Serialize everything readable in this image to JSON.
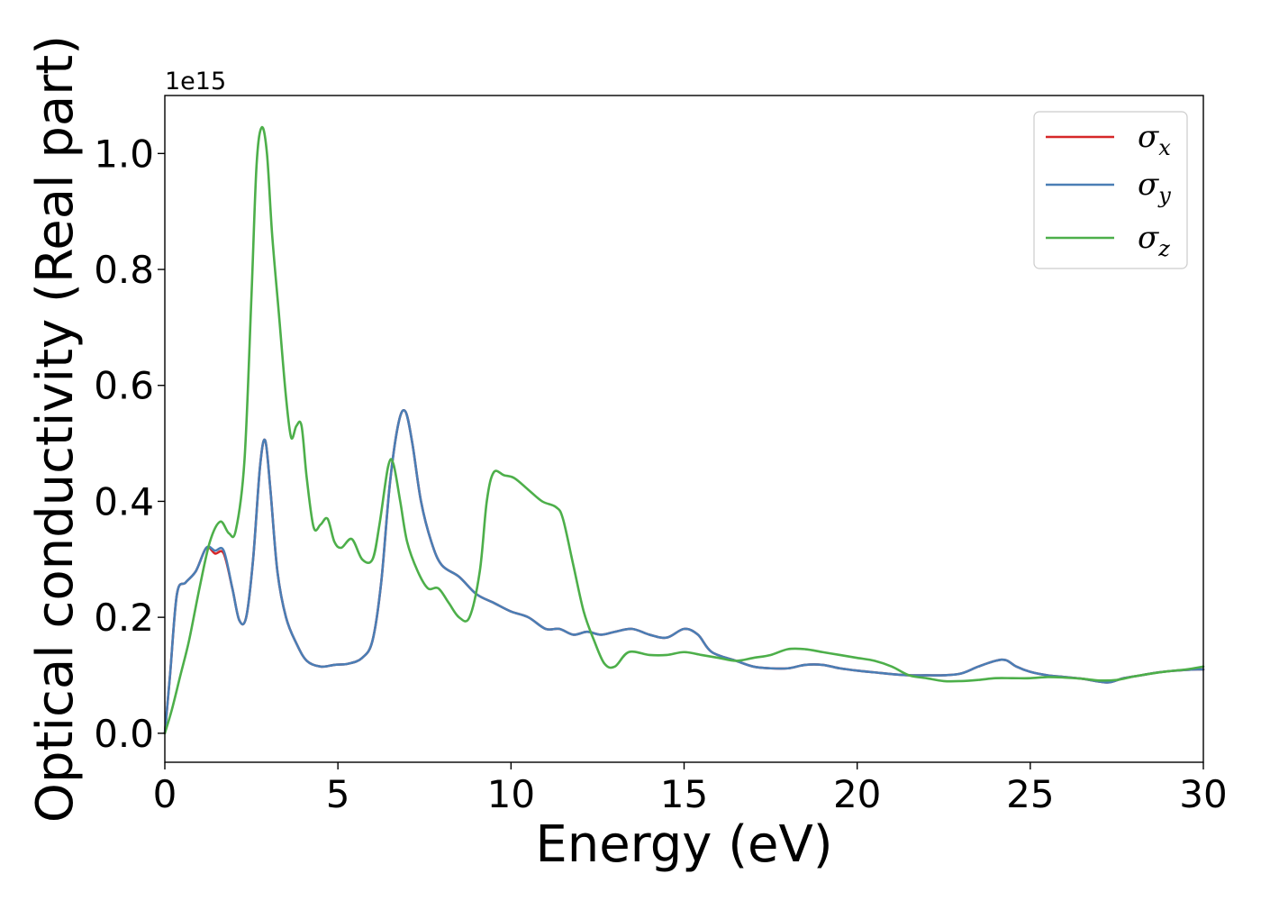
{
  "chart_data": {
    "type": "line",
    "xlabel": "Energy (eV)",
    "ylabel": "Optical conductivity (Real part)",
    "y_offset_text": "1e15",
    "xlim": [
      0,
      30
    ],
    "ylim": [
      -0.05,
      1.1
    ],
    "x_ticks": [
      0,
      5,
      10,
      15,
      20,
      25,
      30
    ],
    "x_tick_labels": [
      "0",
      "5",
      "10",
      "15",
      "20",
      "25",
      "30"
    ],
    "y_ticks": [
      0.0,
      0.2,
      0.4,
      0.6,
      0.8,
      1.0
    ],
    "y_tick_labels": [
      "0.0",
      "0.2",
      "0.4",
      "0.6",
      "0.8",
      "1.0"
    ],
    "grid": false,
    "legend_position": "top-right",
    "series": [
      {
        "name": "σx",
        "symbol": "σ",
        "subscript": "x",
        "color": "#d62728",
        "x": [
          0,
          0.15,
          0.35,
          0.6,
          0.9,
          1.2,
          1.45,
          1.7,
          1.95,
          2.15,
          2.35,
          2.55,
          2.75,
          2.9,
          3.05,
          3.25,
          3.5,
          3.8,
          4.1,
          4.5,
          4.9,
          5.3,
          5.7,
          6.0,
          6.25,
          6.5,
          6.75,
          6.95,
          7.15,
          7.4,
          7.7,
          8.0,
          8.5,
          9.0,
          9.5,
          10.0,
          10.5,
          11.0,
          11.4,
          11.8,
          12.2,
          12.6,
          13.0,
          13.5,
          14.0,
          14.5,
          15.0,
          15.4,
          15.8,
          16.5,
          17.0,
          17.5,
          18.0,
          18.5,
          19.0,
          19.5,
          20.0,
          20.5,
          21.0,
          21.5,
          22.0,
          22.5,
          23.0,
          23.5,
          24.0,
          24.3,
          24.6,
          25.0,
          25.5,
          26.0,
          26.5,
          27.0,
          27.3,
          27.7,
          28.2,
          28.7,
          29.2,
          29.7,
          30.0
        ],
        "y": [
          0.0,
          0.1,
          0.24,
          0.26,
          0.28,
          0.32,
          0.31,
          0.31,
          0.25,
          0.195,
          0.2,
          0.3,
          0.46,
          0.505,
          0.42,
          0.28,
          0.2,
          0.155,
          0.125,
          0.115,
          0.118,
          0.12,
          0.13,
          0.16,
          0.26,
          0.43,
          0.535,
          0.555,
          0.5,
          0.4,
          0.33,
          0.29,
          0.27,
          0.24,
          0.225,
          0.21,
          0.2,
          0.18,
          0.18,
          0.17,
          0.175,
          0.17,
          0.175,
          0.18,
          0.17,
          0.165,
          0.18,
          0.17,
          0.14,
          0.125,
          0.115,
          0.112,
          0.112,
          0.118,
          0.118,
          0.112,
          0.108,
          0.105,
          0.102,
          0.1,
          0.1,
          0.1,
          0.103,
          0.115,
          0.125,
          0.126,
          0.115,
          0.106,
          0.1,
          0.097,
          0.094,
          0.089,
          0.088,
          0.095,
          0.1,
          0.105,
          0.108,
          0.11,
          0.11
        ]
      },
      {
        "name": "σy",
        "symbol": "σ",
        "subscript": "y",
        "color": "#4a7eb5",
        "x": [
          0,
          0.15,
          0.35,
          0.6,
          0.9,
          1.2,
          1.45,
          1.7,
          1.95,
          2.15,
          2.35,
          2.55,
          2.75,
          2.9,
          3.05,
          3.25,
          3.5,
          3.8,
          4.1,
          4.5,
          4.9,
          5.3,
          5.7,
          6.0,
          6.25,
          6.5,
          6.75,
          6.95,
          7.15,
          7.4,
          7.7,
          8.0,
          8.5,
          9.0,
          9.5,
          10.0,
          10.5,
          11.0,
          11.4,
          11.8,
          12.2,
          12.6,
          13.0,
          13.5,
          14.0,
          14.5,
          15.0,
          15.4,
          15.8,
          16.5,
          17.0,
          17.5,
          18.0,
          18.5,
          19.0,
          19.5,
          20.0,
          20.5,
          21.0,
          21.5,
          22.0,
          22.5,
          23.0,
          23.5,
          24.0,
          24.3,
          24.6,
          25.0,
          25.5,
          26.0,
          26.5,
          27.0,
          27.3,
          27.7,
          28.2,
          28.7,
          29.2,
          29.7,
          30.0
        ],
        "y": [
          0.0,
          0.1,
          0.24,
          0.26,
          0.28,
          0.32,
          0.315,
          0.315,
          0.25,
          0.195,
          0.2,
          0.3,
          0.46,
          0.505,
          0.42,
          0.28,
          0.2,
          0.155,
          0.125,
          0.115,
          0.118,
          0.12,
          0.13,
          0.16,
          0.26,
          0.43,
          0.535,
          0.555,
          0.5,
          0.4,
          0.33,
          0.29,
          0.27,
          0.24,
          0.225,
          0.21,
          0.2,
          0.18,
          0.18,
          0.17,
          0.175,
          0.17,
          0.175,
          0.18,
          0.17,
          0.165,
          0.18,
          0.17,
          0.14,
          0.125,
          0.115,
          0.112,
          0.112,
          0.118,
          0.118,
          0.112,
          0.108,
          0.105,
          0.102,
          0.1,
          0.1,
          0.1,
          0.103,
          0.115,
          0.125,
          0.126,
          0.115,
          0.106,
          0.1,
          0.097,
          0.094,
          0.089,
          0.088,
          0.095,
          0.1,
          0.105,
          0.108,
          0.11,
          0.11
        ]
      },
      {
        "name": "σz",
        "symbol": "σ",
        "subscript": "z",
        "color": "#4daf4a",
        "x": [
          0,
          0.2,
          0.45,
          0.7,
          1.0,
          1.3,
          1.6,
          1.85,
          2.05,
          2.3,
          2.5,
          2.65,
          2.8,
          2.95,
          3.1,
          3.3,
          3.5,
          3.65,
          3.8,
          3.95,
          4.1,
          4.3,
          4.5,
          4.7,
          4.9,
          5.1,
          5.4,
          5.7,
          6.0,
          6.2,
          6.45,
          6.6,
          6.8,
          7.0,
          7.3,
          7.6,
          7.9,
          8.2,
          8.5,
          8.8,
          9.1,
          9.3,
          9.5,
          9.8,
          10.1,
          10.5,
          10.9,
          11.3,
          11.5,
          11.8,
          12.1,
          12.4,
          12.7,
          13.0,
          13.4,
          14.0,
          14.5,
          15.0,
          15.5,
          16.0,
          16.5,
          17.0,
          17.5,
          18.0,
          18.5,
          19.0,
          19.5,
          20.0,
          20.5,
          21.0,
          21.5,
          22.0,
          22.5,
          23.0,
          23.5,
          24.0,
          24.5,
          25.0,
          25.5,
          26.0,
          26.5,
          27.0,
          27.5,
          28.0,
          28.5,
          29.0,
          29.5,
          30.0
        ],
        "y": [
          0.0,
          0.04,
          0.1,
          0.16,
          0.25,
          0.33,
          0.365,
          0.345,
          0.35,
          0.47,
          0.75,
          0.98,
          1.045,
          1.0,
          0.86,
          0.72,
          0.58,
          0.51,
          0.53,
          0.53,
          0.44,
          0.355,
          0.36,
          0.37,
          0.33,
          0.32,
          0.335,
          0.3,
          0.3,
          0.36,
          0.46,
          0.465,
          0.4,
          0.33,
          0.28,
          0.25,
          0.25,
          0.225,
          0.2,
          0.2,
          0.28,
          0.4,
          0.45,
          0.445,
          0.44,
          0.42,
          0.4,
          0.39,
          0.37,
          0.29,
          0.21,
          0.16,
          0.12,
          0.115,
          0.14,
          0.135,
          0.135,
          0.14,
          0.135,
          0.13,
          0.125,
          0.13,
          0.135,
          0.145,
          0.145,
          0.14,
          0.135,
          0.13,
          0.125,
          0.115,
          0.1,
          0.095,
          0.09,
          0.09,
          0.092,
          0.095,
          0.095,
          0.095,
          0.097,
          0.096,
          0.094,
          0.091,
          0.092,
          0.098,
          0.103,
          0.107,
          0.11,
          0.115
        ]
      }
    ]
  }
}
